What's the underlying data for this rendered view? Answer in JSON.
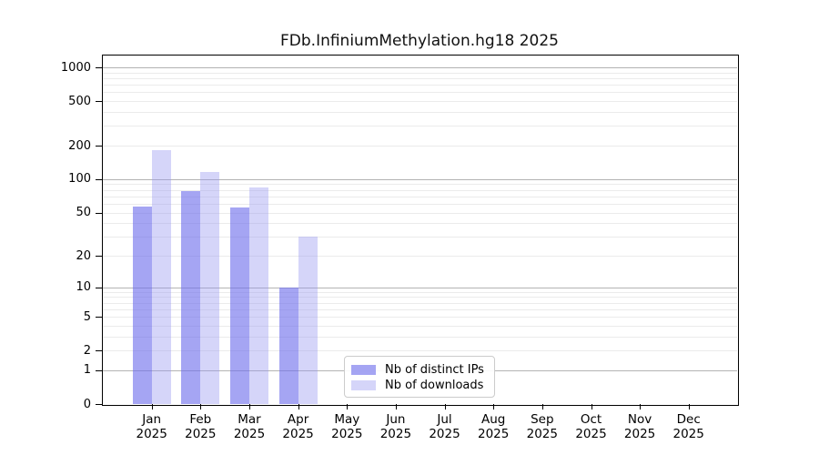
{
  "title": "FDb.InfiniumMethylation.hg18 2025",
  "chart_data": {
    "type": "bar",
    "title": "FDb.InfiniumMethylation.hg18 2025",
    "categories": [
      "Jan",
      "Feb",
      "Mar",
      "Apr",
      "May",
      "Jun",
      "Jul",
      "Aug",
      "Sep",
      "Oct",
      "Nov",
      "Dec"
    ],
    "category_year": "2025",
    "series": [
      {
        "name": "Nb of distinct IPs",
        "color": "rgba(110,110,235,0.62)",
        "color_hex_on_white": "#a6a6f5",
        "values": [
          57,
          78,
          56,
          10,
          null,
          null,
          null,
          null,
          null,
          null,
          null,
          null
        ]
      },
      {
        "name": "Nb of downloads",
        "color": "rgba(150,150,240,0.40)",
        "color_hex_on_white": "#d7d7f8",
        "values": [
          182,
          117,
          84,
          30,
          null,
          null,
          null,
          null,
          null,
          null,
          null,
          null
        ]
      }
    ],
    "y_axis": {
      "scale": "log1p",
      "ticks": [
        0,
        1,
        2,
        5,
        10,
        20,
        50,
        100,
        200,
        500,
        1000
      ],
      "decade_gridlines": [
        1,
        10,
        100,
        1000
      ],
      "minor_gridlines": [
        2,
        3,
        4,
        5,
        6,
        7,
        8,
        9,
        20,
        30,
        40,
        50,
        60,
        70,
        80,
        90,
        200,
        300,
        400,
        500,
        600,
        700,
        800,
        900
      ],
      "ylim": [
        0,
        1200
      ]
    },
    "grid": true,
    "legend_position": "inside-bottom-center"
  },
  "colors": {
    "decade_grid": "#b3b3b3",
    "minor_grid": "#ebebeb",
    "axis": "#000000",
    "text": "#000000",
    "legend_border": "#cccccc"
  }
}
